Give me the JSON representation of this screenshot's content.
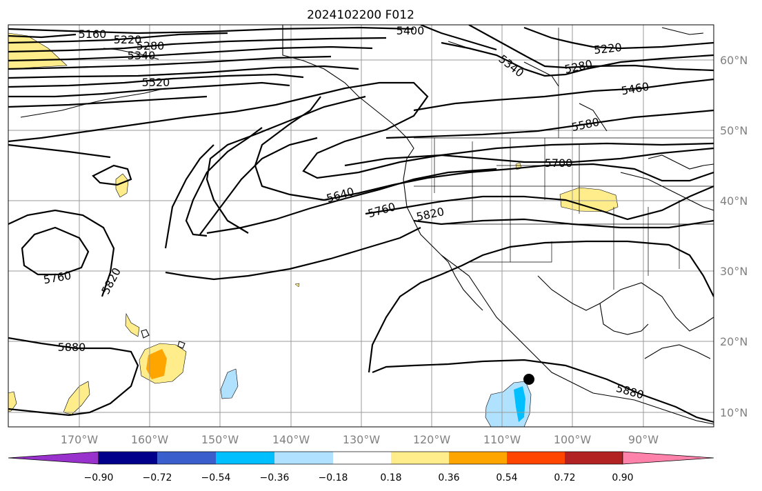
{
  "title": "2024102200 F012",
  "lon_labels": [
    "170°W",
    "160°W",
    "150°W",
    "140°W",
    "130°W",
    "120°W",
    "110°W",
    "100°W",
    "90°W"
  ],
  "lat_labels": [
    "60°N",
    "50°N",
    "40°N",
    "30°N",
    "20°N",
    "10°N"
  ],
  "colorbar": {
    "tick_labels": [
      "−0.90",
      "−0.72",
      "−0.54",
      "−0.36",
      "−0.18",
      "0.18",
      "0.36",
      "0.54",
      "0.72",
      "0.90"
    ],
    "colors": [
      "#9932cc",
      "#00008b",
      "#3a5fcd",
      "#00bfff",
      "#b0e2ff",
      "#ffffff",
      "#ffec8b",
      "#ffa500",
      "#ff4500",
      "#b22222",
      "#ff82ab"
    ]
  },
  "contour_labels": [
    "5400",
    "5160",
    "5220",
    "5280",
    "5340",
    "5520",
    "5340",
    "5280",
    "5220",
    "5460",
    "5580",
    "5700",
    "5640",
    "5760",
    "5820",
    "5760",
    "5820",
    "5880",
    "5880"
  ],
  "map_features": {
    "contour_line_color": "#000000",
    "grid_color": "#9a9a9a",
    "marker": "storm-center-dot"
  }
}
